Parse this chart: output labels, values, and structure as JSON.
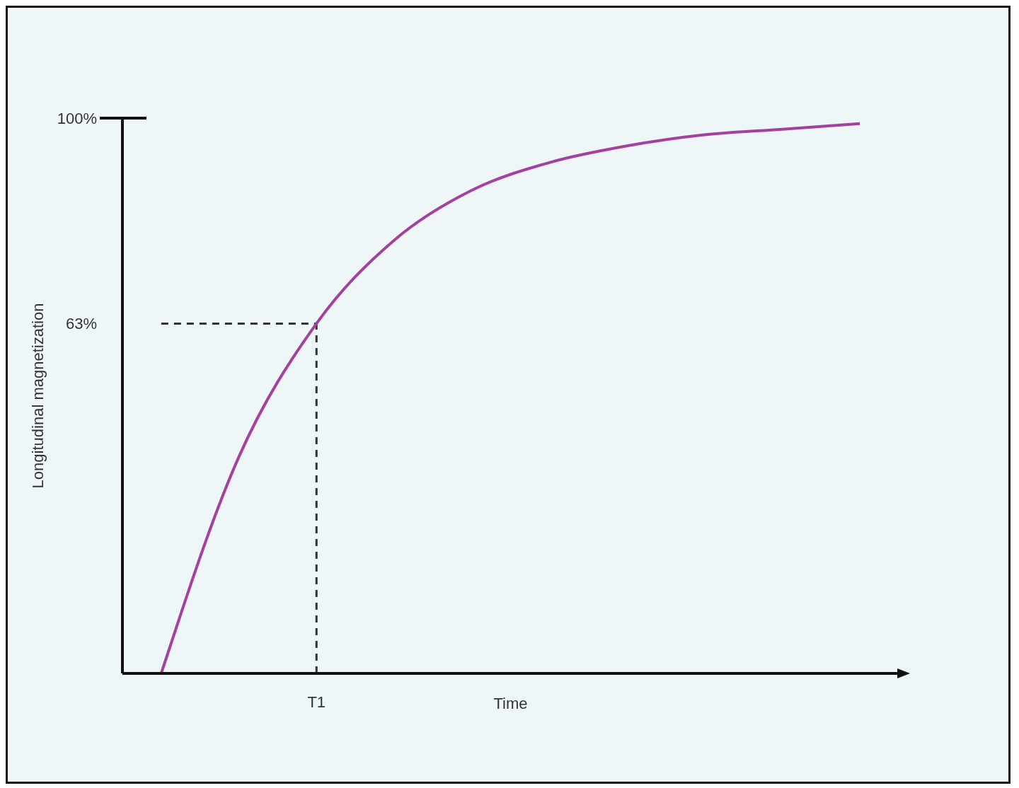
{
  "chart_data": {
    "type": "line",
    "xlabel": "Time",
    "ylabel": "Longitudinal magnetization",
    "categories": [
      null,
      null,
      "T1",
      null,
      null,
      null,
      null,
      null,
      null,
      null
    ],
    "series": [
      {
        "color": "#a4419e",
        "values": [
          0,
          39,
          63,
          78,
          87,
          92,
          95,
          97,
          98,
          99
        ]
      }
    ],
    "ylim": [
      0,
      100
    ],
    "yticks": [
      {
        "value": 63,
        "label": "63%"
      },
      {
        "value": 100,
        "label": "100%"
      }
    ],
    "ref_lines": [
      {
        "axis": "y",
        "value": 63,
        "color": "#333333",
        "line_style": "dashed"
      },
      {
        "axis": "x",
        "value": "T1",
        "color": "#333333",
        "line_style": "dashed"
      }
    ],
    "marker": "none",
    "line_style": "solid",
    "legend": false
  }
}
